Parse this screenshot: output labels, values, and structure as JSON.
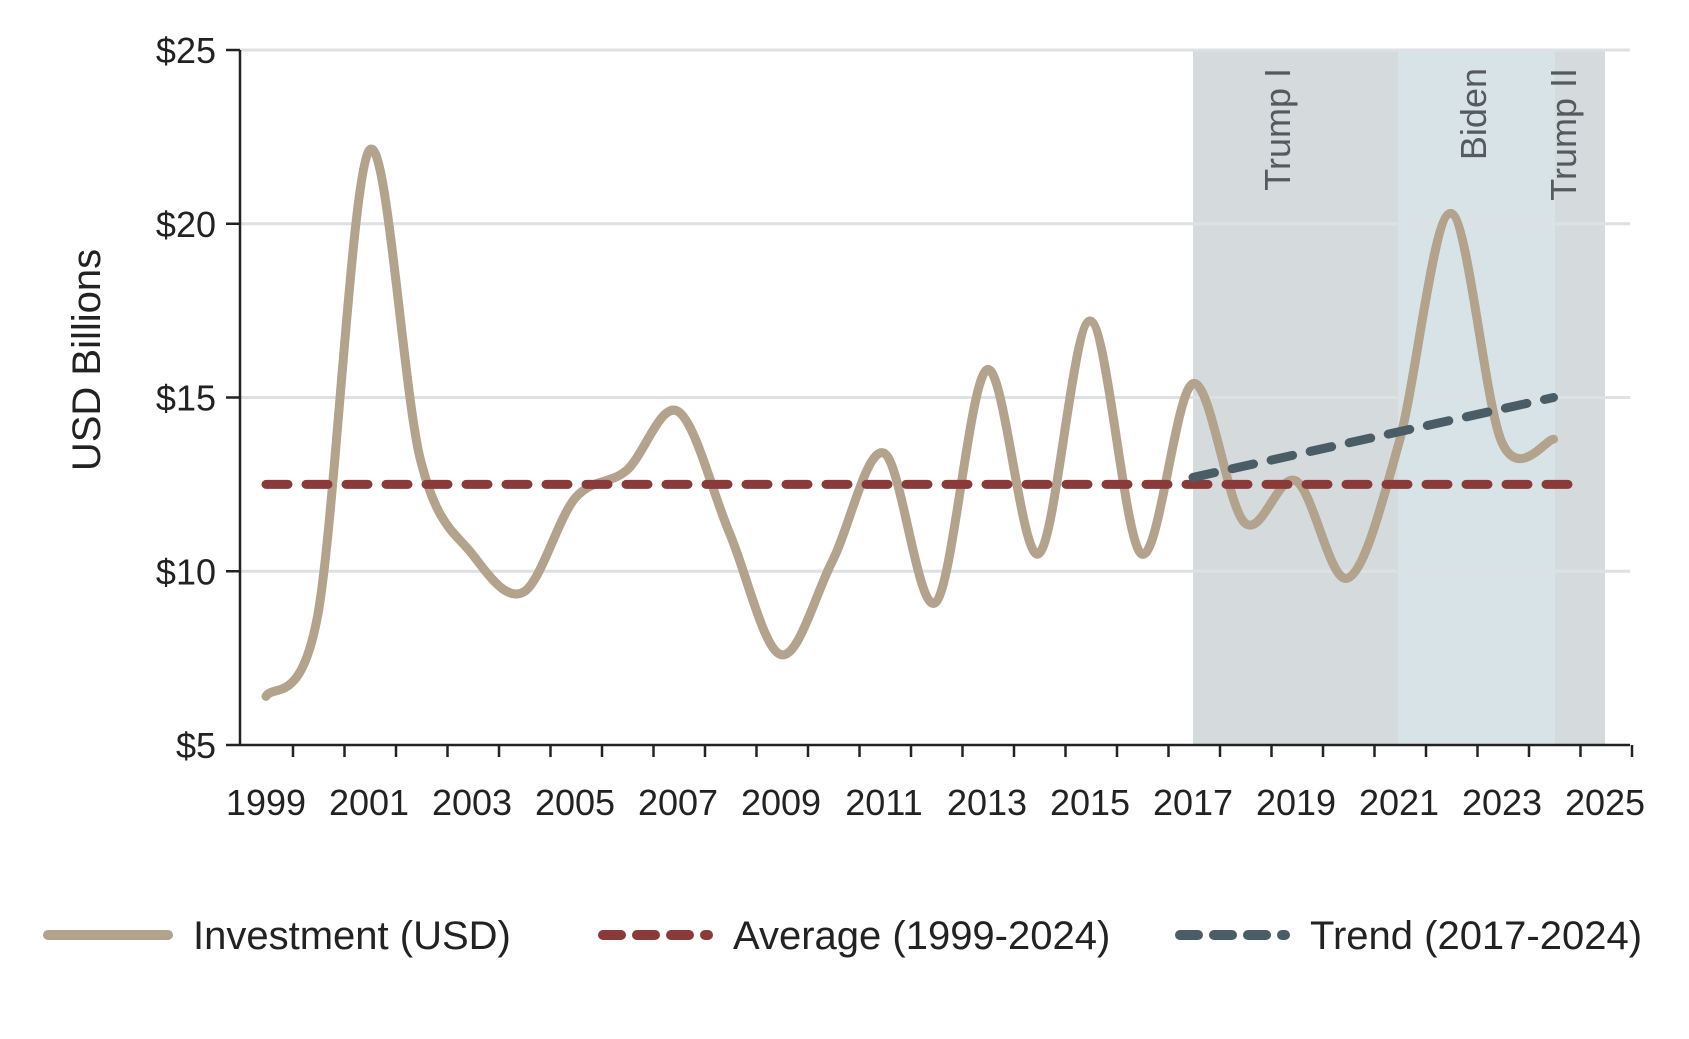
{
  "chart_data": {
    "type": "line",
    "ylabel": "USD Billions",
    "xlabel": "",
    "title": "",
    "xlim": [
      1998.5,
      2025.5
    ],
    "ylim": [
      5,
      25
    ],
    "x_ticks": [
      1999,
      2001,
      2003,
      2005,
      2007,
      2009,
      2011,
      2013,
      2015,
      2017,
      2019,
      2021,
      2023,
      2025
    ],
    "y_ticks": [
      {
        "value": 5,
        "label": "$5"
      },
      {
        "value": 10,
        "label": "$10"
      },
      {
        "value": 15,
        "label": "$15"
      },
      {
        "value": 20,
        "label": "$20"
      },
      {
        "value": 25,
        "label": "$25"
      }
    ],
    "grid": "horizontal",
    "legend_position": "bottom",
    "series": [
      {
        "name": "Investment (USD)",
        "style": "solid",
        "color": "#b3a28c",
        "x": [
          1999,
          2000,
          2001,
          2002,
          2003,
          2004,
          2005,
          2006,
          2007,
          2008,
          2009,
          2010,
          2011,
          2012,
          2013,
          2014,
          2015,
          2016,
          2017,
          2018,
          2019,
          2020,
          2021,
          2022,
          2023,
          2024
        ],
        "values": [
          6.4,
          8.7,
          22.1,
          13.2,
          10.5,
          9.4,
          12.1,
          12.9,
          14.6,
          11.1,
          7.6,
          10.3,
          13.4,
          9.1,
          15.8,
          10.5,
          17.2,
          10.5,
          15.4,
          11.4,
          12.6,
          9.8,
          13.7,
          20.3,
          13.7,
          13.8
        ]
      },
      {
        "name": "Average (1999-2024)",
        "style": "dashed",
        "color": "#8b3a3a",
        "x": [
          1999,
          2024.5
        ],
        "values": [
          12.5,
          12.5
        ]
      },
      {
        "name": "Trend (2017-2024)",
        "style": "dashed",
        "color": "#4a5c66",
        "x": [
          2017,
          2024
        ],
        "values": [
          12.7,
          15.0
        ]
      }
    ],
    "shaded_regions": [
      {
        "label": "Trump I",
        "x_start": 2017,
        "x_end": 2021,
        "color": "#d5dadd"
      },
      {
        "label": "Biden",
        "x_start": 2021,
        "x_end": 2024,
        "color": "#d8e3e7"
      },
      {
        "label": "Trump II",
        "x_start": 2024,
        "x_end": 2025,
        "color": "#d5dadd"
      }
    ]
  }
}
